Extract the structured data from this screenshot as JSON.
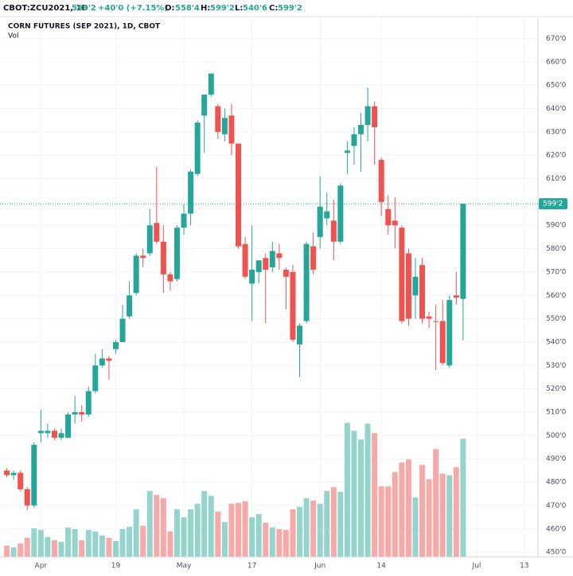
{
  "chart_data": {
    "type": "candlestick",
    "header": {
      "symbol": "CBOT:ZCU2021, 1D",
      "last": "599'2",
      "change": "+40'0 (+7.15%)",
      "open_label": "O:",
      "open": "558'4",
      "high_label": "H:",
      "high": "599'2",
      "low_label": "L:",
      "low": "540'6",
      "close_label": "C:",
      "close": "599'2"
    },
    "title": "CORN FUTURES (SEP 2021), 1D, CBOT",
    "volume_title": "Vol",
    "last_price_label": "599'2",
    "categories": [
      null,
      null,
      null,
      null,
      null,
      null,
      null,
      null,
      null,
      null,
      null,
      null,
      null,
      null,
      null,
      null,
      null,
      null,
      null,
      null,
      null,
      null,
      null,
      null,
      null,
      null,
      null,
      null,
      null,
      null,
      null,
      null,
      null,
      null,
      null,
      null,
      null,
      null,
      null,
      null,
      null,
      null,
      null,
      null,
      null,
      null,
      null,
      null,
      null,
      null,
      null,
      null,
      null,
      null,
      null,
      null,
      null,
      null,
      null,
      null,
      null,
      null,
      null,
      null,
      null,
      null,
      null,
      null
    ],
    "open": [
      485,
      483,
      484,
      477,
      470,
      501,
      501,
      502,
      499,
      499,
      509,
      510,
      509,
      519,
      530,
      533,
      537,
      540,
      551,
      561,
      577,
      578,
      591,
      583,
      569,
      567,
      589,
      595,
      612,
      637,
      646,
      641,
      629,
      637,
      625,
      582,
      565,
      570,
      576,
      572,
      578,
      571,
      570,
      539,
      549,
      581,
      585,
      593,
      592,
      583,
      621,
      624,
      629,
      633,
      641,
      618,
      597,
      592,
      589,
      578,
      560,
      573,
      551,
      549,
      549,
      530,
      560,
      558.5
    ],
    "high": [
      486,
      485,
      485,
      478,
      497,
      511,
      505,
      503,
      503,
      510,
      517,
      513,
      521,
      535,
      537,
      534,
      541,
      556,
      566,
      578,
      580,
      597,
      615,
      590,
      570,
      590,
      599,
      614,
      635,
      646,
      655,
      642,
      640,
      642,
      625,
      585,
      590,
      575,
      578,
      583,
      582,
      572,
      573,
      548,
      583,
      587,
      611,
      604,
      601,
      608,
      626,
      632,
      638,
      649,
      643,
      619,
      603,
      602,
      590,
      580,
      576,
      576,
      553,
      556,
      558,
      560,
      570,
      599.25
    ],
    "low": [
      482,
      481,
      476,
      468,
      469,
      497,
      499,
      498,
      498,
      499,
      505,
      506,
      508,
      518,
      529,
      524,
      535,
      540,
      550,
      560,
      572,
      577,
      582,
      561,
      562,
      566,
      586,
      590,
      611,
      621,
      645,
      627,
      626,
      620,
      580,
      567,
      549,
      565,
      548,
      570,
      571,
      554,
      540,
      525,
      548,
      569,
      580,
      590,
      575,
      582,
      612,
      616,
      613,
      626,
      616,
      594,
      586,
      580,
      548,
      547,
      550,
      548,
      546,
      528,
      530,
      529,
      556,
      540.75
    ],
    "close": [
      483,
      484,
      477,
      470,
      496,
      502,
      502,
      499,
      501,
      509,
      510,
      509,
      519,
      530,
      533,
      532,
      540,
      550,
      560,
      577,
      576,
      590,
      583,
      569,
      566,
      589,
      595,
      613,
      634,
      646,
      655,
      630,
      636,
      625,
      581,
      568,
      571,
      575,
      571,
      579,
      576,
      568,
      541,
      547,
      582,
      571,
      598,
      596,
      583,
      607,
      622,
      629,
      633,
      641,
      632,
      600,
      590,
      590,
      549,
      550,
      568,
      550,
      550,
      548.75,
      531,
      558,
      559,
      599.25
    ],
    "volume": [
      14,
      12,
      17,
      24,
      36,
      34,
      25,
      21,
      19,
      37,
      35,
      21,
      34,
      32,
      27,
      24,
      20,
      35,
      38,
      60,
      39,
      83,
      78,
      74,
      32,
      60,
      50,
      60,
      67,
      83,
      77,
      57,
      44,
      67,
      68,
      70,
      50,
      54,
      43,
      37,
      35,
      34,
      60,
      63,
      74,
      71,
      67,
      83,
      88,
      82,
      169,
      159,
      148,
      168,
      156,
      89,
      89,
      107,
      119,
      123,
      75,
      116,
      98,
      136,
      105,
      103,
      113,
      149
    ],
    "volume_lim": [
      0,
      680
    ],
    "up_color": "#26a69a",
    "down_color": "#ef5350",
    "up_volume_color": "#94d4cc",
    "down_volume_color": "#f7a9a7",
    "xlim": [
      -1,
      78
    ],
    "xticks": [
      {
        "value": 5,
        "label": "Apr"
      },
      {
        "value": 16,
        "label": "19"
      },
      {
        "value": 26,
        "label": "May"
      },
      {
        "value": 36,
        "label": "17"
      },
      {
        "value": 46,
        "label": "Jun"
      },
      {
        "value": 55,
        "label": "14"
      },
      {
        "value": 69,
        "label": "Jul"
      },
      {
        "value": 76,
        "label": "13"
      }
    ],
    "ylim": [
      448,
      679
    ],
    "yticks": [
      {
        "value": 450,
        "label": "450'0"
      },
      {
        "value": 460,
        "label": "460'0"
      },
      {
        "value": 470,
        "label": "470'0"
      },
      {
        "value": 480,
        "label": "480'0"
      },
      {
        "value": 490,
        "label": "490'0"
      },
      {
        "value": 500,
        "label": "500'0"
      },
      {
        "value": 510,
        "label": "510'0"
      },
      {
        "value": 520,
        "label": "520'0"
      },
      {
        "value": 530,
        "label": "530'0"
      },
      {
        "value": 540,
        "label": "540'0"
      },
      {
        "value": 550,
        "label": "550'0"
      },
      {
        "value": 560,
        "label": "560'0"
      },
      {
        "value": 570,
        "label": "570'0"
      },
      {
        "value": 580,
        "label": "580'0"
      },
      {
        "value": 590,
        "label": "590'0"
      },
      {
        "value": 600,
        "label": "600'0"
      },
      {
        "value": 610,
        "label": "610'0"
      },
      {
        "value": 620,
        "label": "620'0"
      },
      {
        "value": 630,
        "label": "630'0"
      },
      {
        "value": 640,
        "label": "640'0"
      },
      {
        "value": 650,
        "label": "650'0"
      },
      {
        "value": 660,
        "label": "660'0"
      },
      {
        "value": 670,
        "label": "670'0"
      }
    ],
    "grid": true
  }
}
